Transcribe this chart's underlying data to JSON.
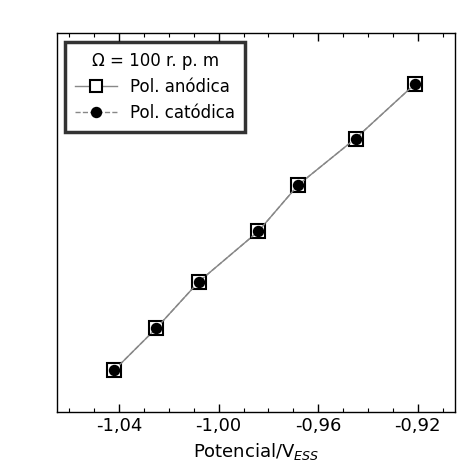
{
  "anodic_x": [
    -1.042,
    -1.025,
    -1.008,
    -0.984,
    -0.968,
    -0.945,
    -0.921
  ],
  "anodic_y": [
    1.0,
    2.0,
    3.1,
    4.3,
    5.4,
    6.5,
    7.8
  ],
  "cathodic_x": [
    -1.042,
    -1.025,
    -1.008,
    -0.984,
    -0.968,
    -0.945,
    -0.921
  ],
  "cathodic_y": [
    1.0,
    2.0,
    3.1,
    4.3,
    5.4,
    6.5,
    7.8
  ],
  "xlabel": "Potencial/V$_{ESS}$",
  "xlim": [
    -1.065,
    -0.905
  ],
  "ylim": [
    0,
    9
  ],
  "xticks": [
    -1.04,
    -1.0,
    -0.96,
    -0.92
  ],
  "xtick_labels": [
    "-1,04",
    "-1,00",
    "-0,96",
    "-0,92"
  ],
  "legend_title": "Ω = 100 r. p. m",
  "legend_line1": "Pol. anódica",
  "legend_line2": "Pol. catódica",
  "anodic_color": "#888888",
  "cathodic_color": "#888888",
  "bg_color": "#ffffff",
  "top_bar_height": 0.018
}
